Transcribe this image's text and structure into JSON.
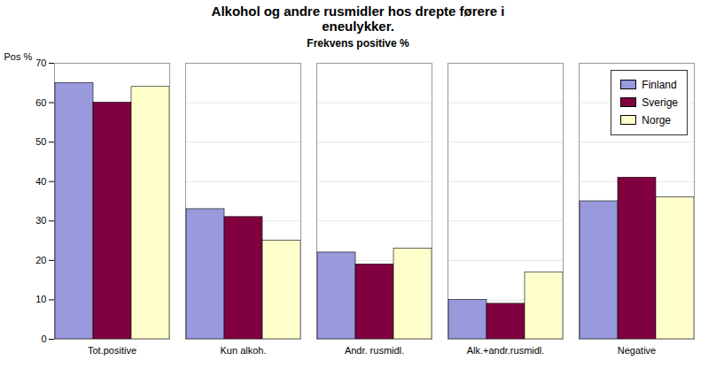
{
  "chart_data": {
    "type": "bar",
    "title": "Alkohol og andre rusmidler hos drepte førere i\neneulykker.",
    "subtitle": "Frekvens positive %",
    "ylabel": "Pos %",
    "categories": [
      "Tot.positive",
      "Kun alkoh.",
      "Andr. rusmidl.",
      "Alk.+andr.rusmidl.",
      "Negative"
    ],
    "series": [
      {
        "name": "Finland",
        "color": "#9999DD",
        "values": [
          65,
          33,
          22,
          10,
          35
        ]
      },
      {
        "name": "Sverige",
        "color": "#800040",
        "values": [
          60,
          31,
          19,
          9,
          41
        ]
      },
      {
        "name": "Norge",
        "color": "#FFFFCC",
        "values": [
          64,
          25,
          23,
          17,
          36
        ]
      }
    ],
    "ylim": [
      0,
      70
    ],
    "yticks": [
      0,
      10,
      20,
      30,
      40,
      50,
      60,
      70
    ],
    "grid": true,
    "legend": "upper right"
  }
}
